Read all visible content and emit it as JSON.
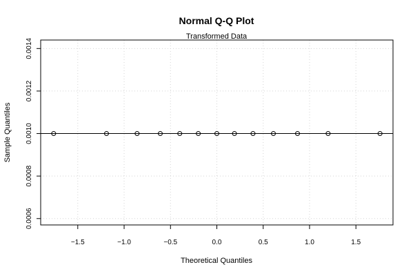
{
  "chart_data": {
    "type": "scatter",
    "title": "Normal Q-Q Plot",
    "subtitle": "Transformed Data",
    "xlabel": "Theoretical Quantiles",
    "ylabel": "Sample Quantiles",
    "xlim": [
      -1.9,
      1.9
    ],
    "ylim": [
      0.00057,
      0.00144
    ],
    "xticks": [
      -1.5,
      -1.0,
      -0.5,
      0.0,
      0.5,
      1.0,
      1.5
    ],
    "xtick_labels": [
      "−1.5",
      "−1.0",
      "−0.5",
      "0.0",
      "0.5",
      "1.0",
      "1.5"
    ],
    "yticks": [
      0.0006,
      0.0008,
      0.001,
      0.0012,
      0.0014
    ],
    "ytick_labels": [
      "0.0006",
      "0.0008",
      "0.0010",
      "0.0012",
      "0.0014"
    ],
    "grid": true,
    "series": [
      {
        "x": [
          -1.76,
          -1.19,
          -0.86,
          -0.61,
          -0.4,
          -0.2,
          0.0,
          0.19,
          0.39,
          0.61,
          0.87,
          1.2,
          1.76
        ],
        "y": [
          0.001,
          0.001,
          0.001,
          0.001,
          0.001,
          0.001,
          0.001,
          0.001,
          0.001,
          0.001,
          0.001,
          0.001,
          0.001
        ]
      }
    ],
    "reference_line": {
      "intercept": 0.001,
      "slope": 0
    },
    "colors": {
      "points": "#000000",
      "line": "#000000",
      "grid": "#d3d3d3",
      "frame": "#000000"
    }
  }
}
